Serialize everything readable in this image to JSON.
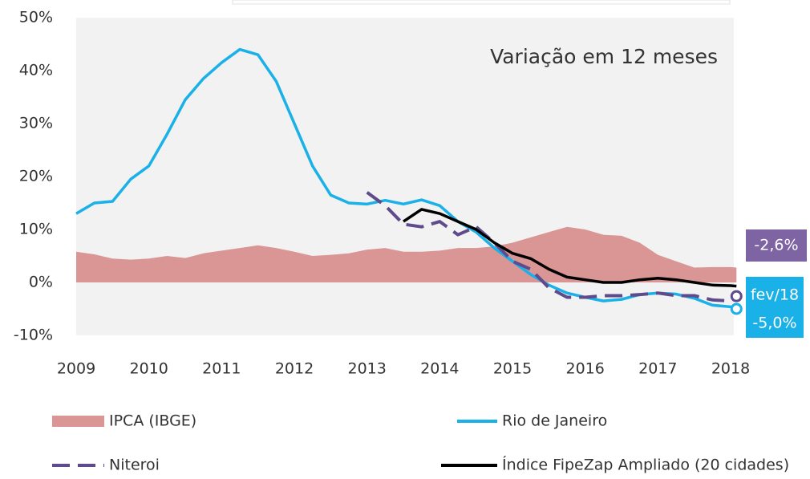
{
  "chart_data": {
    "type": "line",
    "annotations": [
      "Variação em 12 meses",
      "fev/18"
    ],
    "x": [
      2009,
      2009.25,
      2009.5,
      2009.75,
      2010,
      2010.25,
      2010.5,
      2010.75,
      2011,
      2011.25,
      2011.5,
      2011.75,
      2012,
      2012.25,
      2012.5,
      2012.75,
      2013,
      2013.25,
      2013.5,
      2013.75,
      2014,
      2014.25,
      2014.5,
      2014.75,
      2015,
      2015.25,
      2015.5,
      2015.75,
      2016,
      2016.25,
      2016.5,
      2016.75,
      2017,
      2017.25,
      2017.5,
      2017.75,
      2018,
      2018.08
    ],
    "xlim": [
      2009,
      2018.1
    ],
    "xticks": [
      2009,
      2010,
      2011,
      2012,
      2013,
      2014,
      2015,
      2016,
      2017,
      2018
    ],
    "ylim": [
      -10,
      50
    ],
    "yticks": [
      {
        "value": -10,
        "label": "-10%"
      },
      {
        "value": 0,
        "label": "0%"
      },
      {
        "value": 10,
        "label": "10%"
      },
      {
        "value": 20,
        "label": "20%"
      },
      {
        "value": 30,
        "label": "30%"
      },
      {
        "value": 40,
        "label": "40%"
      },
      {
        "value": 50,
        "label": "50%"
      }
    ],
    "series": [
      {
        "name": "IPCA (IBGE)",
        "color": "#d99694",
        "style": "area",
        "values": [
          5.8,
          5.3,
          4.5,
          4.3,
          4.5,
          5.0,
          4.6,
          5.5,
          6.0,
          6.5,
          7.0,
          6.5,
          5.8,
          5.0,
          5.2,
          5.5,
          6.2,
          6.5,
          5.8,
          5.8,
          6.0,
          6.5,
          6.5,
          6.8,
          7.5,
          8.5,
          9.5,
          10.5,
          10.0,
          9.0,
          8.8,
          7.5,
          5.2,
          4.0,
          2.8,
          2.9,
          2.9,
          2.8
        ]
      },
      {
        "name": "Rio de Janeiro",
        "color": "#1ab0e8",
        "style": "solid",
        "values": [
          13,
          15,
          15.3,
          19.5,
          22,
          28,
          34.5,
          38.5,
          41.5,
          44,
          43,
          38,
          30,
          22,
          16.5,
          15,
          14.8,
          15.5,
          14.8,
          15.6,
          14.5,
          11.5,
          9.5,
          6.5,
          4,
          1.5,
          -0.5,
          -2,
          -2.8,
          -3.5,
          -3.2,
          -2.3,
          -2,
          -2.2,
          -3,
          -4.3,
          -4.6,
          -5.0
        ],
        "value_labels": {
          "37": "-5,0%"
        }
      },
      {
        "name": "Niteroi",
        "color": "#5f4b8b",
        "style": "dashed",
        "values": [
          null,
          null,
          null,
          null,
          null,
          null,
          null,
          null,
          null,
          null,
          null,
          null,
          null,
          null,
          null,
          null,
          17,
          14.5,
          11,
          10.5,
          11.5,
          9,
          10.5,
          7.5,
          4,
          2.5,
          -1,
          -2.8,
          -2.8,
          -2.5,
          -2.5,
          -2.3,
          -2,
          -2.5,
          -2.5,
          -3.3,
          -3.5,
          -2.6
        ],
        "value_labels": {
          "37": "-2,6%"
        }
      },
      {
        "name": "Índice FipeZap Ampliado (20 cidades)",
        "color": "#000000",
        "style": "solid",
        "values": [
          null,
          null,
          null,
          null,
          null,
          null,
          null,
          null,
          null,
          null,
          null,
          null,
          null,
          null,
          null,
          null,
          null,
          null,
          11.5,
          13.8,
          13,
          11.5,
          10,
          7.5,
          5.5,
          4.5,
          2.5,
          1.0,
          0.5,
          0,
          0,
          0.5,
          0.8,
          0.5,
          0,
          -0.5,
          -0.6,
          -0.7
        ]
      }
    ]
  }
}
